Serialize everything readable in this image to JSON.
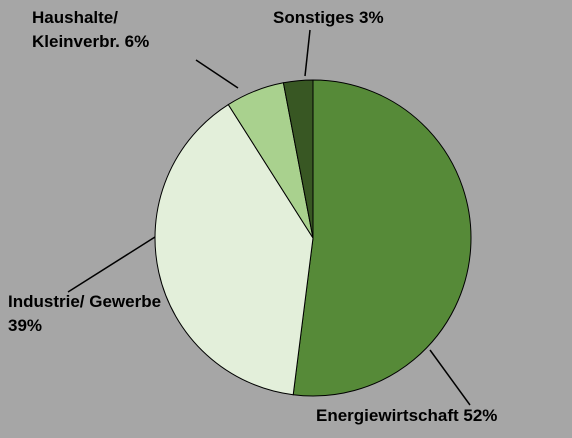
{
  "chart_data": {
    "type": "pie",
    "categories": [
      "Energiewirtschaft",
      "Industrie/ Gewerbe",
      "Haushalte/ Kleinverbr.",
      "Sonstiges"
    ],
    "values": [
      52,
      39,
      6,
      3
    ],
    "value_labels": [
      "52%",
      "39%",
      "6%",
      "3%"
    ],
    "colors": [
      "#568a38",
      "#e3efda",
      "#a9d18e",
      "#385723"
    ]
  }
}
